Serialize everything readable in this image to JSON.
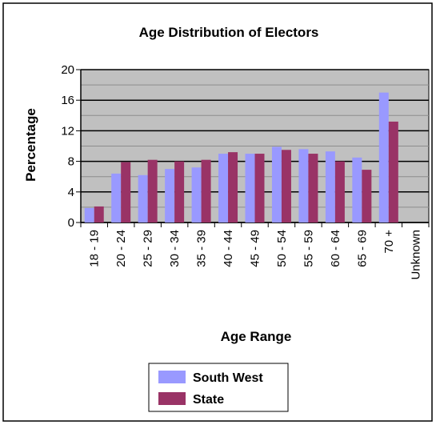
{
  "chart_data": {
    "type": "bar",
    "title": "Age Distribution of Electors",
    "xlabel": "Age Range",
    "ylabel": "Percentage",
    "categories": [
      "18 - 19",
      "20 - 24",
      "25 - 29",
      "30 - 34",
      "35 - 39",
      "40 - 44",
      "45 - 49",
      "50 - 54",
      "55 - 59",
      "60 - 64",
      "65 - 69",
      "70 +",
      "Unknown"
    ],
    "series": [
      {
        "name": "South West",
        "color": "#9999ff",
        "values": [
          1.9,
          6.4,
          6.2,
          7.0,
          7.2,
          9.0,
          9.0,
          9.9,
          9.6,
          9.3,
          8.5,
          17.0,
          0.0
        ]
      },
      {
        "name": "State",
        "color": "#993366",
        "values": [
          2.1,
          7.9,
          8.2,
          8.0,
          8.2,
          9.2,
          9.0,
          9.5,
          9.0,
          8.0,
          6.9,
          13.2,
          0.0
        ]
      }
    ],
    "ylim": [
      0,
      20
    ],
    "yticks": [
      0,
      4,
      8,
      12,
      16,
      20
    ],
    "yticks_minor": [
      2,
      6,
      10,
      14,
      18
    ],
    "grid": true,
    "legend_position": "bottom",
    "plot_background": "#c0c0c0"
  }
}
